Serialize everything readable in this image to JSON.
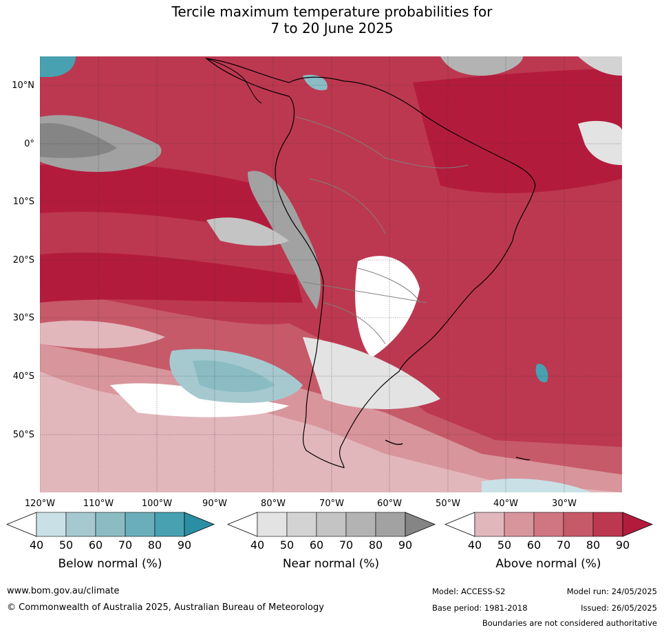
{
  "title": {
    "line1": "Tercile maximum temperature probabilities for",
    "line2": "7 to 20 June 2025"
  },
  "map": {
    "lat_labels": [
      "10°N",
      "0°",
      "10°S",
      "20°S",
      "30°S",
      "40°S",
      "50°S"
    ],
    "lon_labels": [
      "120°W",
      "110°W",
      "100°W",
      "90°W",
      "80°W",
      "70°W",
      "60°W",
      "50°W",
      "40°W",
      "30°W"
    ]
  },
  "legend": {
    "below": {
      "title": "Below normal (%)",
      "ticks": [
        "40",
        "50",
        "60",
        "70",
        "80",
        "90"
      ],
      "colors": [
        "#ffffff",
        "#c9e1e6",
        "#a6c9d0",
        "#8bbcc4",
        "#6aaebb",
        "#47a1b1",
        "#2b8fa3"
      ]
    },
    "near": {
      "title": "Near normal (%)",
      "ticks": [
        "40",
        "50",
        "60",
        "70",
        "80",
        "90"
      ],
      "colors": [
        "#ffffff",
        "#e3e3e3",
        "#d3d3d3",
        "#c4c4c4",
        "#b3b3b3",
        "#a2a2a2",
        "#858585"
      ]
    },
    "above": {
      "title": "Above normal (%)",
      "ticks": [
        "40",
        "50",
        "60",
        "70",
        "80",
        "90"
      ],
      "colors": [
        "#ffffff",
        "#e2b7bc",
        "#d8959c",
        "#cf7682",
        "#c65a69",
        "#bc3850",
        "#b31b3c"
      ]
    }
  },
  "footer": {
    "website": "www.bom.gov.au/climate",
    "copyright": "© Commonwealth of Australia 2025, Australian Bureau of Meteorology",
    "model": "Model: ACCESS-S2",
    "model_run": "Model run: 24/05/2025",
    "base_period": "Base period: 1981-2018",
    "issued": "Issued: 26/05/2025",
    "disclaimer": "Boundaries are not considered authoritative"
  }
}
